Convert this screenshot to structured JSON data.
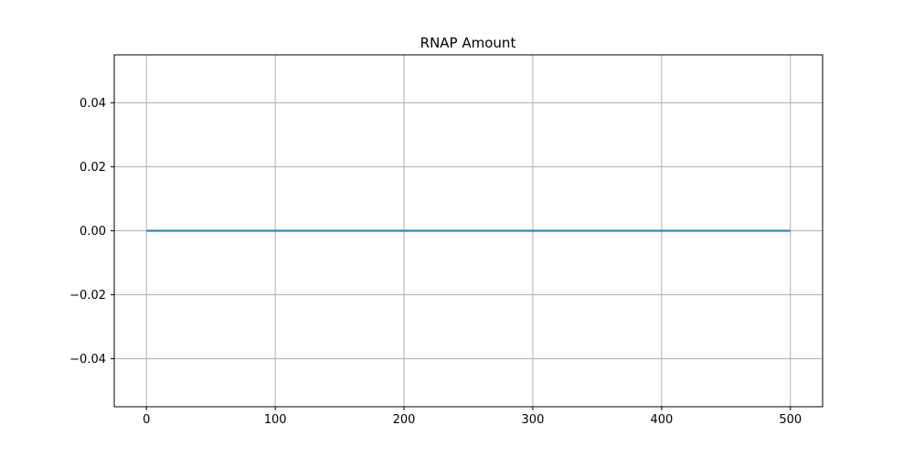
{
  "chart_data": {
    "type": "line",
    "title": "RNAP Amount",
    "xlabel": "",
    "ylabel": "",
    "xlim": [
      -25,
      525
    ],
    "ylim": [
      -0.055,
      0.055
    ],
    "xticks": [
      0,
      100,
      200,
      300,
      400,
      500
    ],
    "xtick_labels": [
      "0",
      "100",
      "200",
      "300",
      "400",
      "500"
    ],
    "yticks": [
      0.04,
      0.02,
      0.0,
      -0.02,
      -0.04
    ],
    "ytick_labels": [
      "0.04",
      "0.02",
      "0.00",
      "−0.02",
      "−0.04"
    ],
    "grid": true,
    "series": [
      {
        "x": [
          0,
          100,
          200,
          300,
          400,
          500
        ],
        "values": [
          0,
          0,
          0,
          0,
          0,
          0
        ],
        "color": "#1f77b4"
      }
    ]
  }
}
